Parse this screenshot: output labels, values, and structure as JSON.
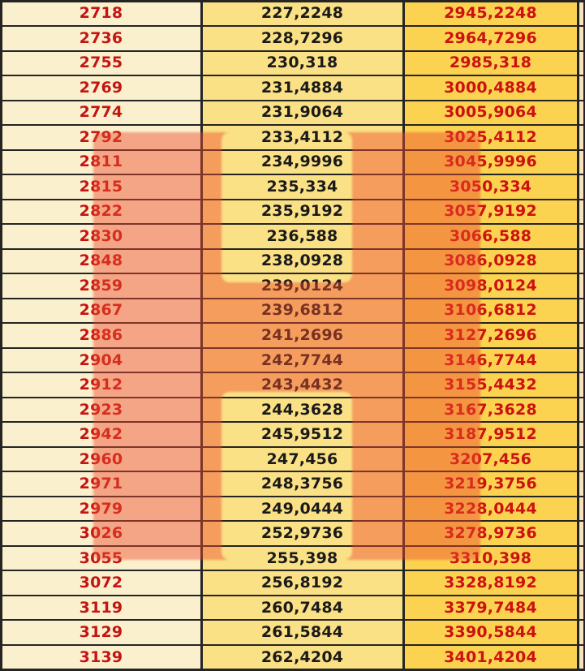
{
  "table": {
    "description": "three-column numeric table, decimal-comma formatted; third column equals first plus second",
    "rows": [
      [
        "2718",
        "227,2248",
        "2945,2248"
      ],
      [
        "2736",
        "228,7296",
        "2964,7296"
      ],
      [
        "2755",
        "230,318",
        "2985,318"
      ],
      [
        "2769",
        "231,4884",
        "3000,4884"
      ],
      [
        "2774",
        "231,9064",
        "3005,9064"
      ],
      [
        "2792",
        "233,4112",
        "3025,4112"
      ],
      [
        "2811",
        "234,9996",
        "3045,9996"
      ],
      [
        "2815",
        "235,334",
        "3050,334"
      ],
      [
        "2822",
        "235,9192",
        "3057,9192"
      ],
      [
        "2830",
        "236,588",
        "3066,588"
      ],
      [
        "2848",
        "238,0928",
        "3086,0928"
      ],
      [
        "2859",
        "239,0124",
        "3098,0124"
      ],
      [
        "2867",
        "239,6812",
        "3106,6812"
      ],
      [
        "2886",
        "241,2696",
        "3127,2696"
      ],
      [
        "2904",
        "242,7744",
        "3146,7744"
      ],
      [
        "2912",
        "243,4432",
        "3155,4432"
      ],
      [
        "2923",
        "244,3628",
        "3167,3628"
      ],
      [
        "2942",
        "245,9512",
        "3187,9512"
      ],
      [
        "2960",
        "247,456",
        "3207,456"
      ],
      [
        "2971",
        "248,3756",
        "3219,3756"
      ],
      [
        "2979",
        "249,0444",
        "3228,0444"
      ],
      [
        "3026",
        "252,9736",
        "3278,9736"
      ],
      [
        "3055",
        "255,398",
        "3310,398"
      ],
      [
        "3072",
        "256,8192",
        "3328,8192"
      ],
      [
        "3119",
        "260,7484",
        "3379,7484"
      ],
      [
        "3129",
        "261,5844",
        "3390,5844"
      ],
      [
        "3139",
        "262,4204",
        "3401,4204"
      ]
    ]
  },
  "colors": {
    "border": "#242424",
    "col_a_bg": "#FBF0CD",
    "col_a_fg": "#C41414",
    "col_b_bg": "#FBE185",
    "col_b_fg": "#1A1A1A",
    "col_c_bg": "#FBD351",
    "col_c_fg": "#CC1111",
    "col_d_bg": "#F3E3BE",
    "highlight": "rgba(234, 74, 44, 0.45)"
  }
}
